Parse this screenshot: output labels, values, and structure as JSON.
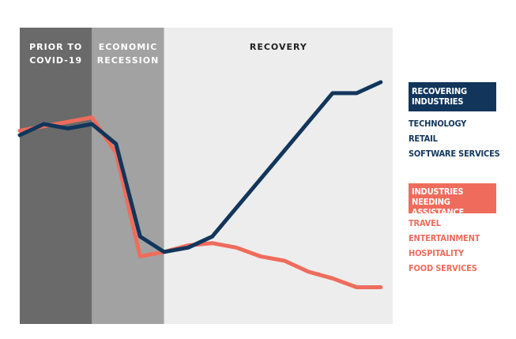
{
  "chart_data": {
    "type": "line",
    "title": "",
    "xlabel": "",
    "ylabel": "",
    "x": [
      0,
      1,
      2,
      3,
      4,
      5,
      6,
      7,
      8,
      9,
      10,
      11,
      12,
      13,
      14,
      15
    ],
    "xlim": [
      0,
      15.5
    ],
    "ylim": [
      0,
      100
    ],
    "phases": [
      {
        "label_lines": [
          "PRIOR TO",
          "COVID-19"
        ],
        "x_start": 0,
        "x_end": 3,
        "color": "#6a6a6a",
        "text_color": "#ffffff"
      },
      {
        "label_lines": [
          "ECONOMIC",
          "RECESSION"
        ],
        "x_start": 3,
        "x_end": 6,
        "color": "#a2a2a2",
        "text_color": "#ffffff"
      },
      {
        "label_lines": [
          "RECOVERY"
        ],
        "x_start": 6,
        "x_end": 15.5,
        "color": "#ededed",
        "text_color": "#222222"
      }
    ],
    "series": [
      {
        "key": "recovering",
        "color": "#12365b",
        "values": [
          76,
          81,
          79,
          81,
          72,
          30,
          23,
          25,
          30,
          43,
          56,
          69,
          82,
          95,
          95,
          100
        ]
      },
      {
        "key": "assistance",
        "color": "#ef6c5c",
        "values": [
          78,
          80,
          82,
          84,
          68,
          21,
          23,
          26,
          27,
          25,
          21,
          19,
          14,
          11,
          7,
          7
        ]
      }
    ],
    "legend": [
      {
        "heading": "RECOVERING INDUSTRIES",
        "color": "#12365b",
        "items": [
          "TECHNOLOGY",
          "RETAIL",
          "SOFTWARE SERVICES"
        ]
      },
      {
        "heading": "INDUSTRIES NEEDING ASSISTANCE",
        "color": "#ef6c5c",
        "items": [
          "Travel",
          "Entertainment",
          "Hospitality",
          "Food services"
        ]
      }
    ]
  }
}
